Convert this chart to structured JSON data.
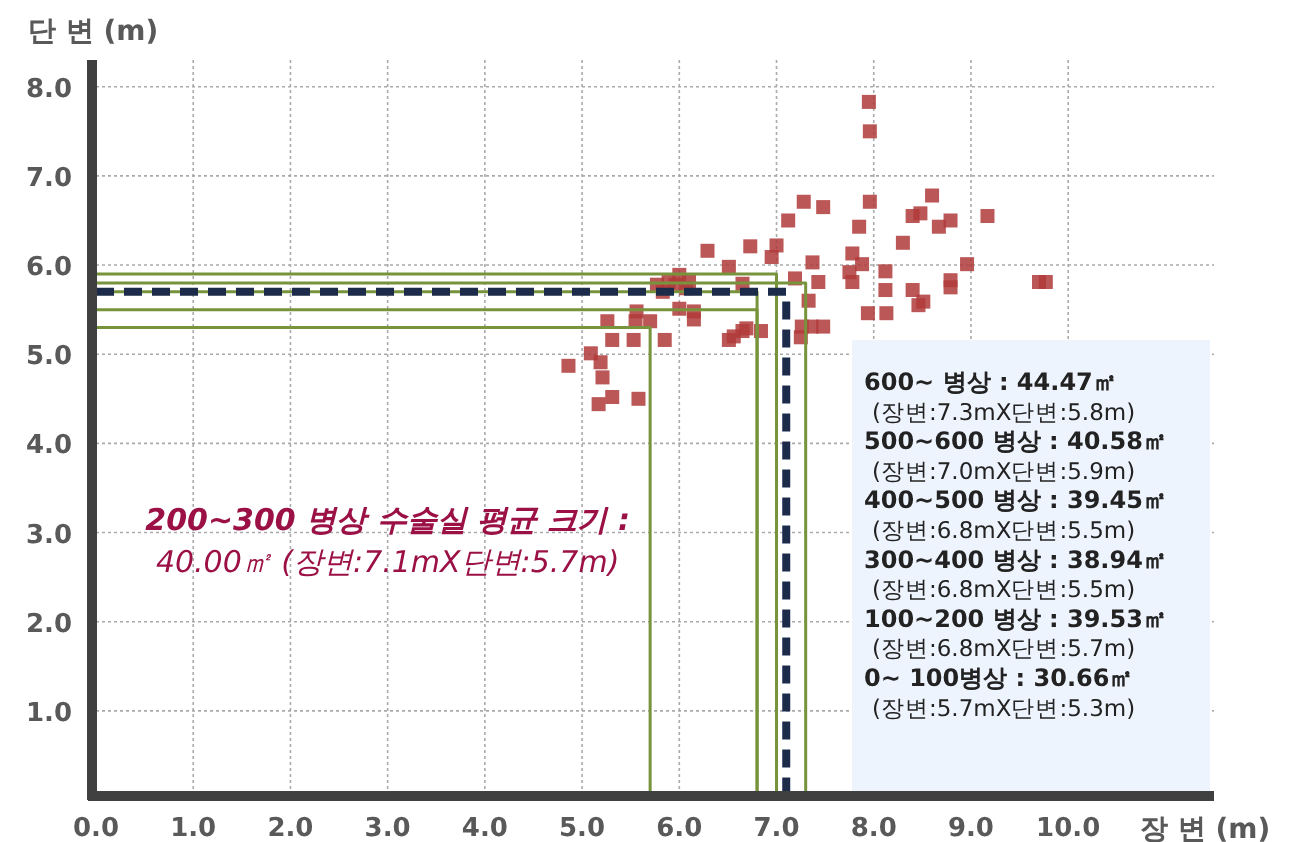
{
  "chart_data": {
    "type": "scatter",
    "xlabel": "장 변 (m)",
    "ylabel": "단 변 (m)",
    "xlim": [
      0,
      11.5
    ],
    "ylim": [
      0,
      8.3
    ],
    "xticks": [
      {
        "value": 0,
        "label": "0.0"
      },
      {
        "value": 1,
        "label": "1.0"
      },
      {
        "value": 2,
        "label": "2.0"
      },
      {
        "value": 3,
        "label": "3.0"
      },
      {
        "value": 4,
        "label": "4.0"
      },
      {
        "value": 5,
        "label": "5.0"
      },
      {
        "value": 6,
        "label": "6.0"
      },
      {
        "value": 7,
        "label": "7.0"
      },
      {
        "value": 8,
        "label": "8.0"
      },
      {
        "value": 9,
        "label": "9.0"
      },
      {
        "value": 10,
        "label": "10.0"
      }
    ],
    "yticks": [
      {
        "value": 1,
        "label": "1.0"
      },
      {
        "value": 2,
        "label": "2.0"
      },
      {
        "value": 3,
        "label": "3.0"
      },
      {
        "value": 4,
        "label": "4.0"
      },
      {
        "value": 5,
        "label": "5.0"
      },
      {
        "value": 6,
        "label": "6.0"
      },
      {
        "value": 7,
        "label": "7.0"
      },
      {
        "value": 8,
        "label": "8.0"
      }
    ],
    "grid": true,
    "series": [
      {
        "type": "scatter",
        "marker": "square",
        "color": "#b03a3a",
        "x": [
          7.95,
          7.96,
          7.28,
          7.48,
          7.96,
          8.6,
          7.12,
          7.85,
          8.4,
          8.48,
          8.79,
          8.67,
          9.17,
          6.29,
          6.73,
          7.0,
          6.95,
          8.3,
          7.78,
          7.88,
          7.37,
          8.96,
          6.51,
          7.75,
          8.12,
          7.78,
          7.19,
          7.43,
          8.79,
          8.79,
          8.12,
          8.4,
          8.46,
          8.51,
          7.94,
          8.13,
          9.7,
          9.77,
          7.33,
          7.26,
          7.36,
          7.48,
          7.25,
          6.84,
          6.65,
          6.51,
          6.65,
          5.77,
          5.89,
          6.0,
          6.07,
          5.83,
          5.96,
          6.1,
          6.0,
          6.15,
          6.15,
          5.56,
          5.55,
          5.7,
          5.26,
          5.85,
          5.53,
          5.31,
          5.09,
          4.86,
          5.19,
          5.21,
          5.17,
          5.31,
          5.58,
          6.56,
          6.69
        ],
        "values": [
          7.83,
          7.5,
          6.71,
          6.65,
          6.71,
          6.78,
          6.5,
          6.43,
          6.55,
          6.58,
          6.5,
          6.43,
          6.55,
          6.16,
          6.21,
          6.22,
          6.09,
          6.25,
          6.13,
          6.01,
          6.03,
          6.01,
          5.98,
          5.92,
          5.93,
          5.81,
          5.85,
          5.81,
          5.83,
          5.75,
          5.72,
          5.72,
          5.55,
          5.59,
          5.46,
          5.46,
          5.81,
          5.81,
          5.6,
          5.31,
          5.31,
          5.31,
          5.19,
          5.26,
          5.26,
          5.16,
          5.79,
          5.78,
          5.81,
          5.89,
          5.74,
          5.7,
          5.78,
          5.81,
          5.51,
          5.48,
          5.39,
          5.48,
          5.37,
          5.37,
          5.37,
          5.16,
          5.16,
          5.16,
          5.01,
          4.87,
          4.91,
          4.74,
          4.44,
          4.52,
          4.5,
          5.2,
          5.29
        ]
      },
      {
        "type": "line",
        "marker": "none",
        "color": "#77933c",
        "x": [
          0,
          5.7,
          5.7
        ],
        "values": [
          5.3,
          5.3,
          0
        ]
      },
      {
        "type": "line",
        "marker": "none",
        "color": "#77933c",
        "x": [
          0,
          6.8,
          6.8
        ],
        "values": [
          5.7,
          5.7,
          0
        ]
      },
      {
        "type": "line",
        "marker": "none",
        "color": "#77933c",
        "x": [
          0,
          6.8,
          6.8
        ],
        "values": [
          5.5,
          5.5,
          0
        ]
      },
      {
        "type": "line",
        "marker": "none",
        "color": "#77933c",
        "x": [
          0,
          7.0,
          7.0
        ],
        "values": [
          5.9,
          5.9,
          0
        ]
      },
      {
        "type": "line",
        "marker": "none",
        "color": "#77933c",
        "x": [
          0,
          7.3,
          7.3
        ],
        "values": [
          5.8,
          5.8,
          0
        ]
      },
      {
        "type": "line",
        "marker": "none",
        "color": "#1c2b4a",
        "line_style": "dashed",
        "x": [
          0,
          7.1,
          7.1
        ],
        "values": [
          5.7,
          5.7,
          0
        ]
      }
    ],
    "annotations": [
      "200~300 병상 수술실 평균 크기 :",
      "40.00㎡ (장변:7.1mX단변:5.7m)",
      "600~        병상 : 44.47㎡",
      "(장변:7.3mX단변:5.8m)",
      "500~600 병상 : 40.58㎡",
      "(장변:7.0mX단변:5.9m)",
      "400~500 병상 : 39.45㎡",
      "(장변:6.8mX단변:5.5m)",
      "300~400 병상 : 38.94㎡",
      "(장변:6.8mX단변:5.5m)",
      "100~200 병상 : 39.53㎡",
      "(장변:6.8mX단변:5.7m)",
      "0~ 100병상 : 30.66㎡",
      "(장변:5.7mX단변:5.3m)"
    ]
  }
}
